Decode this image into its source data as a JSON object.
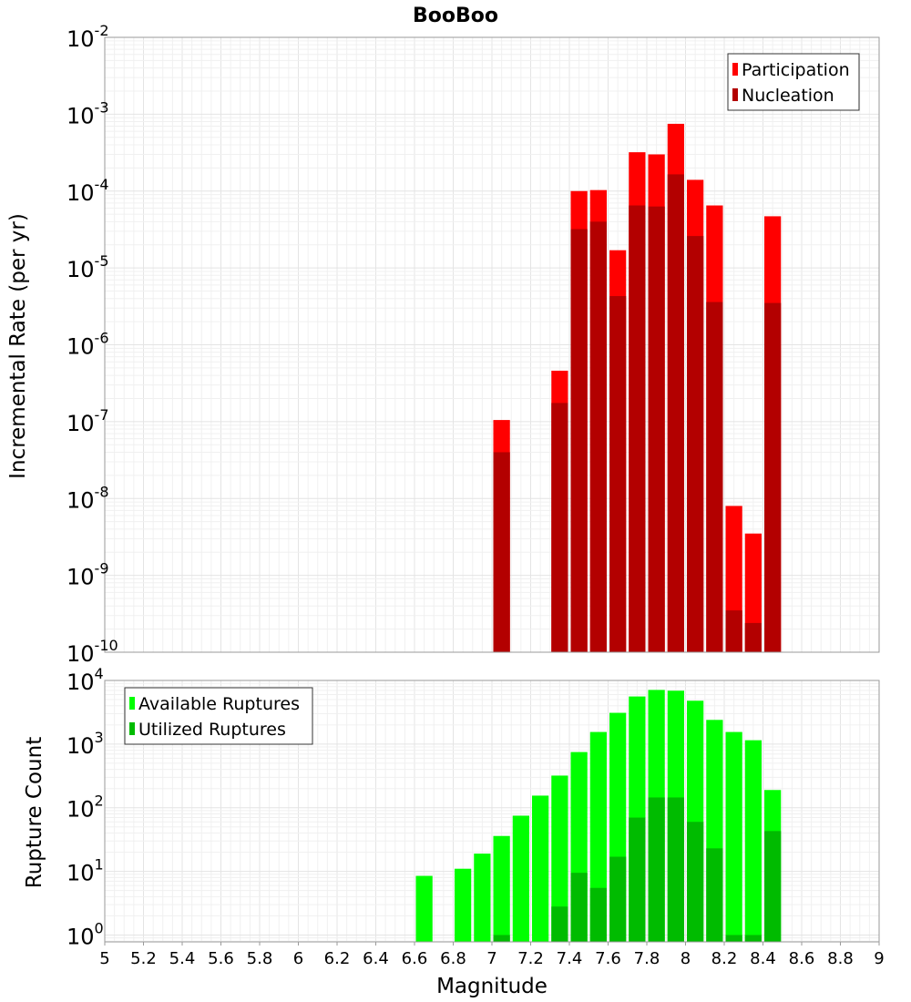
{
  "chart_data": [
    {
      "type": "bar",
      "title": "BooBoo",
      "ylabel": "Incremental Rate (per yr)",
      "xlabel": "",
      "xlim": [
        5,
        9
      ],
      "ylim": [
        1e-10,
        0.01
      ],
      "yscale": "log",
      "grid": true,
      "legend_position": "top-right",
      "bin_width": 0.1,
      "x_ticks": [
        "5",
        "5.2",
        "5.4",
        "5.6",
        "5.8",
        "6",
        "6.2",
        "6.4",
        "6.6",
        "6.8",
        "7",
        "7.2",
        "7.4",
        "7.6",
        "7.8",
        "8",
        "8.2",
        "8.4",
        "8.6",
        "8.8",
        "9"
      ],
      "y_tick_bases": [
        "10",
        "10",
        "10",
        "10",
        "10",
        "10",
        "10",
        "10",
        "10"
      ],
      "y_tick_exponents": [
        "-10",
        "-9",
        "-8",
        "-7",
        "-6",
        "-5",
        "-4",
        "-3",
        "-2"
      ],
      "series": [
        {
          "name": "Participation",
          "color": "#ff0000",
          "x": [
            7.05,
            7.35,
            7.45,
            7.55,
            7.65,
            7.75,
            7.85,
            7.95,
            8.05,
            8.15,
            8.25,
            8.35,
            8.45
          ],
          "values": [
            1.05e-07,
            4.6e-07,
            0.0001,
            0.000103,
            1.7e-05,
            0.00032,
            0.0003,
            0.00075,
            0.00014,
            6.5e-05,
            8e-09,
            3.5e-09,
            4.7e-05
          ]
        },
        {
          "name": "Nucleation",
          "color": "#b30000",
          "x": [
            7.05,
            7.35,
            7.45,
            7.55,
            7.65,
            7.75,
            7.85,
            7.95,
            8.05,
            8.15,
            8.25,
            8.35,
            8.45
          ],
          "values": [
            4e-08,
            1.75e-07,
            3.2e-05,
            4e-05,
            4.3e-06,
            6.5e-05,
            6.3e-05,
            0.000165,
            2.6e-05,
            3.6e-06,
            3.5e-10,
            2.4e-10,
            3.5e-06
          ]
        }
      ]
    },
    {
      "type": "bar",
      "title": "",
      "ylabel": "Rupture Count",
      "xlabel": "Magnitude",
      "xlim": [
        5,
        9
      ],
      "ylim": [
        0.78,
        10000
      ],
      "yscale": "log",
      "grid": true,
      "legend_position": "top-left",
      "bin_width": 0.1,
      "x_ticks": [
        "5",
        "5.2",
        "5.4",
        "5.6",
        "5.8",
        "6",
        "6.2",
        "6.4",
        "6.6",
        "6.8",
        "7",
        "7.2",
        "7.4",
        "7.6",
        "7.8",
        "8",
        "8.2",
        "8.4",
        "8.6",
        "8.8",
        "9"
      ],
      "y_tick_bases": [
        "10",
        "10",
        "10",
        "10",
        "10"
      ],
      "y_tick_exponents": [
        "0",
        "1",
        "2",
        "3",
        "4"
      ],
      "series": [
        {
          "name": "Available Ruptures",
          "color": "#00ff00",
          "x": [
            6.65,
            6.85,
            6.95,
            7.05,
            7.15,
            7.25,
            7.35,
            7.45,
            7.55,
            7.65,
            7.75,
            7.85,
            7.95,
            8.05,
            8.15,
            8.25,
            8.35,
            8.45
          ],
          "values": [
            8.5,
            11,
            19,
            36,
            75,
            155,
            320,
            750,
            1550,
            3100,
            5600,
            7100,
            6900,
            4800,
            2400,
            1550,
            1150,
            190
          ]
        },
        {
          "name": "Utilized Ruptures",
          "color": "#00bb00",
          "x": [
            7.05,
            7.35,
            7.45,
            7.55,
            7.65,
            7.75,
            7.85,
            7.95,
            8.05,
            8.15,
            8.25,
            8.35,
            8.45
          ],
          "values": [
            1,
            2.8,
            9.5,
            5.5,
            17,
            70,
            145,
            145,
            60,
            23,
            1,
            1,
            43
          ]
        }
      ]
    }
  ]
}
